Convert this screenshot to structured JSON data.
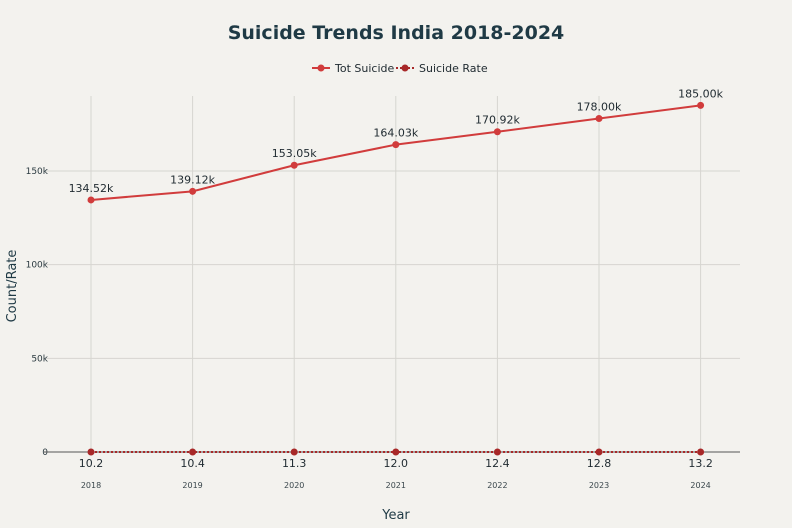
{
  "chart_data": {
    "type": "line",
    "title": "Suicide Trends India 2018-2024",
    "xlabel": "Year",
    "ylabel": "Count/Rate",
    "categories": [
      "2018",
      "2019",
      "2020",
      "2021",
      "2022",
      "2023",
      "2024"
    ],
    "ylim": [
      0,
      190000
    ],
    "yticks": [
      0,
      50000,
      100000,
      150000
    ],
    "ytick_labels": [
      "0",
      "50k",
      "100k",
      "150k"
    ],
    "grid": true,
    "legend_position": "top-center",
    "series": [
      {
        "name": "Tot Suicide",
        "values": [
          134520,
          139120,
          153050,
          164030,
          170920,
          178000,
          185000
        ],
        "labels": [
          "134.52k",
          "139.12k",
          "153.05k",
          "164.03k",
          "170.92k",
          "178.00k",
          "185.00k"
        ],
        "color": "#d13c3c",
        "style": "solid"
      },
      {
        "name": "Suicide Rate",
        "values": [
          10.2,
          10.4,
          11.3,
          12.0,
          12.4,
          12.8,
          13.2
        ],
        "labels": [
          "10.2",
          "10.4",
          "11.3",
          "12.0",
          "12.4",
          "12.8",
          "13.2"
        ],
        "color": "#a82828",
        "style": "dotted"
      }
    ]
  }
}
